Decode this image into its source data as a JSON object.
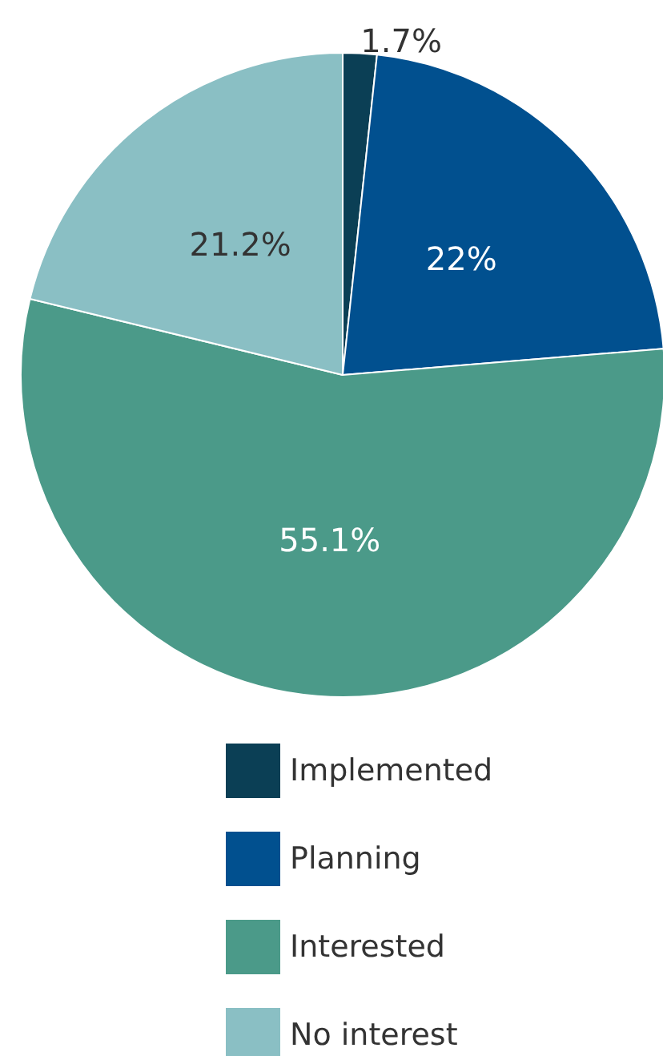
{
  "chart_data": {
    "type": "pie",
    "categories": [
      "Implemented",
      "Planning",
      "Interested",
      "No interest"
    ],
    "values": [
      1.7,
      22,
      55.1,
      21.2
    ],
    "colors": [
      "#0b3f55",
      "#01508f",
      "#4b9a89",
      "#8abfc4"
    ],
    "value_labels": [
      "1.7%",
      "22%",
      "55.1%",
      "21.2%"
    ],
    "legend": "bottom"
  }
}
